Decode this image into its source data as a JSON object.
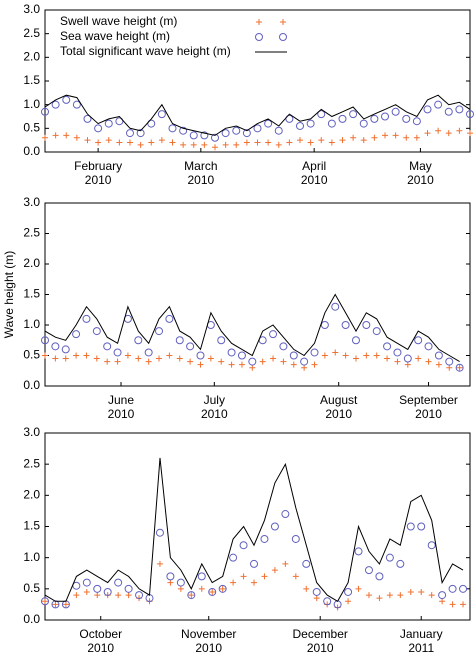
{
  "chart_data": [
    {
      "type": "line",
      "legend": "upper left",
      "x": [
        0,
        3,
        6,
        9,
        12,
        15,
        18,
        21,
        24,
        27,
        30,
        33,
        36,
        39,
        42,
        45,
        48,
        51,
        54,
        57,
        60,
        63,
        66,
        69,
        72,
        75,
        78,
        81,
        84,
        87,
        90,
        93,
        96,
        99,
        102,
        105,
        108,
        111,
        114,
        117,
        120
      ],
      "xlim": [
        0,
        120
      ],
      "ylim": [
        0,
        3
      ],
      "yticks": [
        {
          "value": 0,
          "label": "0.0"
        },
        0.5,
        {
          "value": 1,
          "label": "1.0"
        },
        1.5,
        {
          "value": 2,
          "label": "2.0"
        },
        2.5,
        {
          "value": 3,
          "label": "3.0"
        }
      ],
      "xticks": [
        {
          "value": 15,
          "label": [
            "February",
            "2010"
          ]
        },
        {
          "value": 44,
          "label": [
            "March",
            "2010"
          ]
        },
        {
          "value": 76,
          "label": [
            "April",
            "2010"
          ]
        },
        {
          "value": 106,
          "label": [
            "May",
            "2010"
          ]
        }
      ],
      "series": [
        {
          "name": "Swell wave height (m)",
          "color": "#f07030",
          "style": "plus",
          "values": [
            0.3,
            0.35,
            0.35,
            0.3,
            0.25,
            0.2,
            0.25,
            0.2,
            0.2,
            0.15,
            0.2,
            0.25,
            0.2,
            0.15,
            0.15,
            0.15,
            0.1,
            0.15,
            0.15,
            0.2,
            0.2,
            0.2,
            0.15,
            0.2,
            0.25,
            0.2,
            0.25,
            0.2,
            0.25,
            0.3,
            0.25,
            0.3,
            0.35,
            0.35,
            0.3,
            0.3,
            0.4,
            0.45,
            0.4,
            0.45,
            0.4
          ]
        },
        {
          "name": "Sea wave height (m)",
          "color": "#6060c0",
          "style": "circle",
          "values": [
            0.85,
            1.0,
            1.1,
            1.0,
            0.7,
            0.5,
            0.6,
            0.65,
            0.4,
            0.4,
            0.6,
            0.8,
            0.5,
            0.45,
            0.35,
            0.35,
            0.3,
            0.4,
            0.45,
            0.4,
            0.5,
            0.6,
            0.45,
            0.7,
            0.55,
            0.6,
            0.8,
            0.6,
            0.7,
            0.8,
            0.6,
            0.7,
            0.75,
            0.85,
            0.7,
            0.65,
            0.9,
            1.0,
            0.85,
            0.9,
            0.8
          ]
        },
        {
          "name": "Total significant wave height (m)",
          "color": "#000000",
          "style": "line",
          "values": [
            0.95,
            1.1,
            1.2,
            1.15,
            0.8,
            0.6,
            0.7,
            0.75,
            0.5,
            0.45,
            0.7,
            1.0,
            0.6,
            0.5,
            0.45,
            0.4,
            0.35,
            0.5,
            0.55,
            0.45,
            0.6,
            0.7,
            0.55,
            0.8,
            0.65,
            0.7,
            0.9,
            0.75,
            0.85,
            0.95,
            0.7,
            0.8,
            0.9,
            1.0,
            0.85,
            0.75,
            1.1,
            1.2,
            1.0,
            1.05,
            0.9
          ]
        }
      ]
    },
    {
      "type": "line",
      "ylabel": "Wave height (m)",
      "x": [
        0,
        3,
        6,
        9,
        12,
        15,
        18,
        21,
        24,
        27,
        30,
        33,
        36,
        39,
        42,
        45,
        48,
        51,
        54,
        57,
        60,
        63,
        66,
        69,
        72,
        75,
        78,
        81,
        84,
        87,
        90,
        93,
        96,
        99,
        102,
        105,
        108,
        111,
        114,
        117,
        120
      ],
      "xlim": [
        0,
        123
      ],
      "ylim": [
        0,
        3
      ],
      "yticks": [
        {
          "value": 0,
          "label": "0.0"
        },
        0.5,
        {
          "value": 1,
          "label": "1.0"
        },
        1.5,
        {
          "value": 2,
          "label": "2.0"
        },
        2.5,
        {
          "value": 3,
          "label": "3.0"
        }
      ],
      "xticks": [
        {
          "value": 22,
          "label": [
            "June",
            "2010"
          ]
        },
        {
          "value": 49,
          "label": [
            "July",
            "2010"
          ]
        },
        {
          "value": 85,
          "label": [
            "August",
            "2010"
          ]
        },
        {
          "value": 111,
          "label": [
            "September",
            "2010"
          ]
        }
      ],
      "series": [
        {
          "color": "#f07030",
          "style": "plus",
          "values": [
            0.5,
            0.45,
            0.45,
            0.5,
            0.5,
            0.45,
            0.4,
            0.4,
            0.5,
            0.45,
            0.4,
            0.45,
            0.5,
            0.45,
            0.4,
            0.35,
            0.45,
            0.4,
            0.35,
            0.35,
            0.3,
            0.4,
            0.45,
            0.4,
            0.35,
            0.3,
            0.35,
            0.5,
            0.55,
            0.5,
            0.45,
            0.5,
            0.5,
            0.45,
            0.4,
            0.35,
            0.45,
            0.4,
            0.35,
            0.3,
            0.3
          ]
        },
        {
          "color": "#6060c0",
          "style": "circle",
          "values": [
            0.75,
            0.65,
            0.6,
            0.85,
            1.1,
            0.9,
            0.65,
            0.55,
            1.1,
            0.75,
            0.55,
            0.9,
            1.1,
            0.75,
            0.65,
            0.5,
            1.0,
            0.75,
            0.55,
            0.5,
            0.4,
            0.75,
            0.85,
            0.65,
            0.5,
            0.4,
            0.55,
            1.0,
            1.3,
            1.0,
            0.75,
            1.0,
            0.9,
            0.65,
            0.55,
            0.45,
            0.75,
            0.65,
            0.5,
            0.4,
            0.3
          ]
        },
        {
          "color": "#000000",
          "style": "line",
          "values": [
            0.9,
            0.8,
            0.75,
            1.0,
            1.3,
            1.1,
            0.8,
            0.7,
            1.3,
            0.9,
            0.7,
            1.1,
            1.3,
            0.9,
            0.8,
            0.6,
            1.2,
            0.9,
            0.7,
            0.6,
            0.5,
            0.9,
            1.0,
            0.8,
            0.6,
            0.5,
            0.7,
            1.2,
            1.5,
            1.2,
            0.9,
            1.2,
            1.1,
            0.8,
            0.7,
            0.6,
            0.9,
            0.8,
            0.6,
            0.5,
            0.4
          ]
        }
      ]
    },
    {
      "type": "line",
      "x": [
        0,
        3,
        6,
        9,
        12,
        15,
        18,
        21,
        24,
        27,
        30,
        33,
        36,
        39,
        42,
        45,
        48,
        51,
        54,
        57,
        60,
        63,
        66,
        69,
        72,
        75,
        78,
        81,
        84,
        87,
        90,
        93,
        96,
        99,
        102,
        105,
        108,
        111,
        114,
        117,
        120
      ],
      "xlim": [
        0,
        122
      ],
      "ylim": [
        0,
        3
      ],
      "yticks": [
        {
          "value": 0,
          "label": "0.0"
        },
        0.5,
        {
          "value": 1,
          "label": "1.0"
        },
        1.5,
        {
          "value": 2,
          "label": "2.0"
        },
        2.5,
        {
          "value": 3,
          "label": "3.0"
        }
      ],
      "xticks": [
        {
          "value": 16,
          "label": [
            "October",
            "2010"
          ]
        },
        {
          "value": 47,
          "label": [
            "November",
            "2010"
          ]
        },
        {
          "value": 79,
          "label": [
            "December",
            "2010"
          ]
        },
        {
          "value": 108,
          "label": [
            "January",
            "2011"
          ]
        }
      ],
      "series": [
        {
          "color": "#f07030",
          "style": "plus",
          "values": [
            0.3,
            0.25,
            0.25,
            0.4,
            0.45,
            0.4,
            0.4,
            0.4,
            0.4,
            0.35,
            0.3,
            0.9,
            0.6,
            0.5,
            0.4,
            0.5,
            0.45,
            0.5,
            0.6,
            0.7,
            0.6,
            0.7,
            0.8,
            0.9,
            0.7,
            0.5,
            0.35,
            0.25,
            0.2,
            0.3,
            0.5,
            0.4,
            0.35,
            0.4,
            0.4,
            0.45,
            0.45,
            0.4,
            0.3,
            0.25,
            0.25
          ]
        },
        {
          "color": "#6060c0",
          "style": "circle",
          "values": [
            0.3,
            0.25,
            0.25,
            0.55,
            0.6,
            0.5,
            0.45,
            0.6,
            0.5,
            0.4,
            0.35,
            1.4,
            0.7,
            0.6,
            0.4,
            0.7,
            0.45,
            0.5,
            1.0,
            1.2,
            0.9,
            1.3,
            1.5,
            1.7,
            1.3,
            0.9,
            0.45,
            0.3,
            0.25,
            0.45,
            1.1,
            0.8,
            0.7,
            1.0,
            0.9,
            1.5,
            1.5,
            1.2,
            0.4,
            0.5,
            0.5
          ]
        },
        {
          "color": "#000000",
          "style": "line",
          "values": [
            0.4,
            0.3,
            0.3,
            0.7,
            0.8,
            0.7,
            0.6,
            0.8,
            0.7,
            0.5,
            0.4,
            2.6,
            1.0,
            0.8,
            0.5,
            0.9,
            0.6,
            0.7,
            1.3,
            1.5,
            1.2,
            1.6,
            2.2,
            2.5,
            1.8,
            1.2,
            0.6,
            0.4,
            0.3,
            0.6,
            1.5,
            1.1,
            0.9,
            1.3,
            1.2,
            1.9,
            2.0,
            1.6,
            0.6,
            0.9,
            0.8
          ]
        }
      ]
    }
  ]
}
